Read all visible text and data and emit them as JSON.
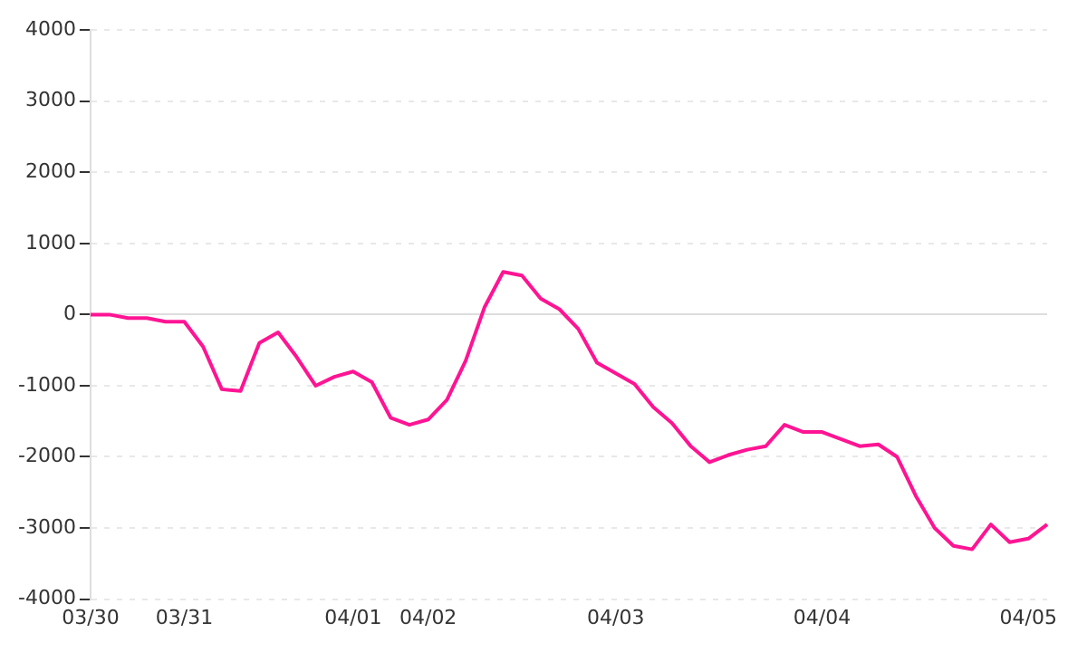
{
  "chart_data": {
    "type": "line",
    "categories": [
      "03/30",
      null,
      null,
      null,
      null,
      "03/31",
      null,
      null,
      null,
      null,
      null,
      null,
      null,
      null,
      "04/01",
      null,
      null,
      null,
      "04/02",
      null,
      null,
      null,
      null,
      null,
      null,
      null,
      null,
      null,
      "04/03",
      null,
      null,
      null,
      null,
      null,
      null,
      null,
      null,
      null,
      null,
      "04/04",
      null,
      null,
      null,
      null,
      null,
      null,
      null,
      null,
      null,
      null,
      "04/05",
      null
    ],
    "series": [
      {
        "color": "#ff1493",
        "values": [
          0,
          0,
          -50,
          -50,
          -100,
          -100,
          -450,
          -1050,
          -1075,
          -400,
          -250,
          -600,
          -1000,
          -875,
          -800,
          -950,
          -1450,
          -1550,
          -1475,
          -1200,
          -650,
          100,
          600,
          550,
          225,
          75,
          -200,
          -675,
          -825,
          -975,
          -1300,
          -1525,
          -1850,
          -2075,
          -1975,
          -1900,
          -1850,
          -1550,
          -1650,
          -1650,
          -1750,
          -1850,
          -1825,
          -2000,
          -2550,
          -3000,
          -3250,
          -3300,
          -2950,
          -3200,
          -3150,
          -2950
        ]
      }
    ],
    "ylim": [
      -4000,
      4000
    ],
    "yticks": [
      -4000,
      -3000,
      -2000,
      -1000,
      0,
      1000,
      2000,
      3000,
      4000
    ],
    "grid": "y",
    "legend": false,
    "marker": "none",
    "line_style": "solid"
  }
}
